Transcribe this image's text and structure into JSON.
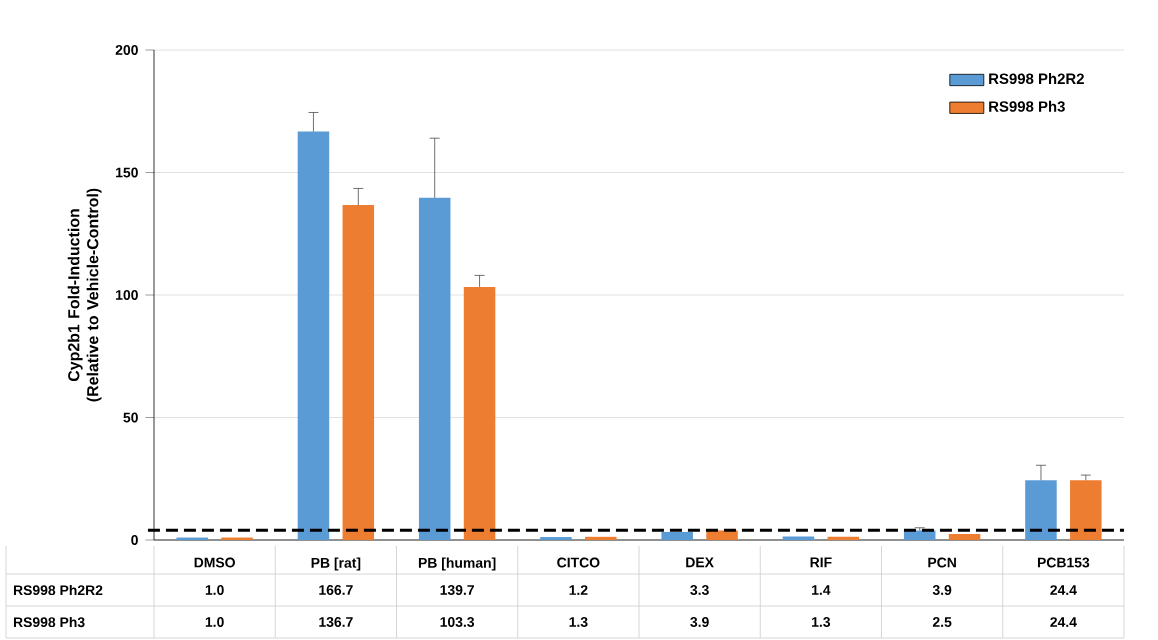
{
  "chart_data": {
    "type": "bar",
    "ylabel": "Cyp2b1 Fold-Induction (Relative to Vehicle-Control)",
    "categories": [
      "DMSO",
      "PB [rat]",
      "PB [human]",
      "CITCO",
      "DEX",
      "RIF",
      "PCN",
      "PCB153"
    ],
    "series": [
      {
        "name": "RS998 Ph2R2",
        "color": "#5b9bd5",
        "values": [
          1.0,
          166.7,
          139.7,
          1.2,
          3.3,
          1.4,
          3.9,
          24.4
        ],
        "value_labels": [
          "1.0",
          "166.7",
          "139.7",
          "1.2",
          "3.3",
          "1.4",
          "3.9",
          "24.4"
        ],
        "errors": [
          null,
          [
            166.7,
            174.5
          ],
          [
            139.7,
            164
          ],
          null,
          null,
          null,
          [
            3.9,
            5
          ],
          [
            24.4,
            30.5
          ]
        ]
      },
      {
        "name": "RS998 Ph3",
        "color": "#ed7d31",
        "values": [
          1.0,
          136.7,
          103.3,
          1.3,
          3.9,
          1.3,
          2.5,
          24.4
        ],
        "value_labels": [
          "1.0",
          "136.7",
          "103.3",
          "1.3",
          "3.9",
          "1.3",
          "2.5",
          "24.4"
        ],
        "errors": [
          null,
          [
            136.7,
            143.5
          ],
          [
            103.3,
            108
          ],
          null,
          null,
          null,
          null,
          [
            24.4,
            26.5
          ]
        ]
      }
    ],
    "ylim": [
      0,
      200
    ],
    "yticks": [
      0,
      50,
      100,
      150,
      200
    ],
    "grid": "y",
    "legend": "top right",
    "ref_lines": [
      {
        "axis": "y",
        "value": 4,
        "color": "#000000",
        "line_style": "dashed"
      }
    ]
  }
}
